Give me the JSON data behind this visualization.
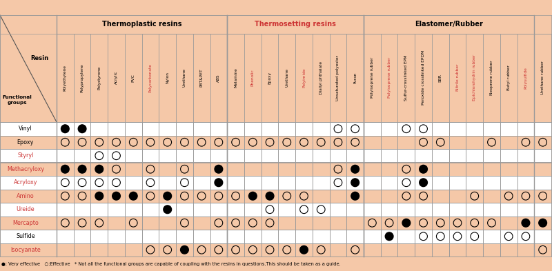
{
  "bg_color": "#F5C8A8",
  "white_color": "#FFFFFF",
  "groups": [
    {
      "text": "Thermoplastic resins",
      "start": 0,
      "end": 9,
      "red": false
    },
    {
      "text": "Thermosetting resins",
      "start": 10,
      "end": 17,
      "red": true
    },
    {
      "text": "Elastomer/Rubber",
      "start": 18,
      "end": 27,
      "red": false
    }
  ],
  "col_headers": [
    "Polyethylene",
    "Polypropylene",
    "Polystyrene",
    "Acrylic",
    "PVC",
    "Polycarbonate",
    "Nylon",
    "Urethane",
    "PBT&PET",
    "ABS",
    "Melamine",
    "Phenolic",
    "Epoxy",
    "Urethane",
    "Polyimide",
    "Diallyl phthalate",
    "Unsaturated polyester",
    "Furan",
    "Polyisoprene rubber",
    "Polyisoprene rubber",
    "Sulfur-crosslinked EPM",
    "Peroxide crosslinked EPDM",
    "SBR",
    "Nitrile rubber",
    "Epichlorohydrin rubber",
    "Neoprene rubber",
    "Butyl rubber",
    "Polysulfide",
    "Urethane rubber"
  ],
  "red_col_indices": [
    5,
    11,
    14,
    19,
    23,
    24,
    27
  ],
  "functional_groups": [
    "Vinyl",
    "Epoxy",
    "Styryl",
    "Methacryloxy",
    "Acryloxy",
    "Amino",
    "Ureide",
    "Mercapto",
    "Sulfide",
    "Isocyanate"
  ],
  "red_fg": [
    "Styryl",
    "Methacryloxy",
    "Acryloxy",
    "Amino",
    "Ureide",
    "Mercapto",
    "Isocyanate"
  ],
  "row_shaded": [
    false,
    true,
    false,
    true,
    false,
    true,
    false,
    true,
    false,
    true
  ],
  "data": {
    "Vinyl": [
      "F",
      "F",
      "",
      "",
      "",
      "",
      "",
      "",
      "",
      "",
      "",
      "",
      "",
      "",
      "",
      "",
      "O",
      "O",
      "",
      "",
      "O",
      "O",
      "",
      "",
      "",
      "",
      "",
      "",
      ""
    ],
    "Epoxy": [
      "O",
      "O",
      "O",
      "O",
      "O",
      "O",
      "O",
      "O",
      "O",
      "O",
      "O",
      "O",
      "O",
      "O",
      "O",
      "O",
      "O",
      "O",
      "",
      "",
      "",
      "O",
      "O",
      "",
      "",
      "O",
      "",
      "O",
      "O"
    ],
    "Styryl": [
      "",
      "",
      "O",
      "O",
      "",
      "",
      "",
      "",
      "",
      "",
      "",
      "",
      "",
      "",
      "",
      "",
      "",
      "",
      "",
      "",
      "",
      "",
      "",
      "",
      "",
      "",
      "",
      "",
      ""
    ],
    "Methacryloxy": [
      "F",
      "F",
      "F",
      "O",
      "",
      "O",
      "",
      "O",
      "",
      "F",
      "",
      "",
      "",
      "",
      "",
      "",
      "O",
      "F",
      "",
      "",
      "O",
      "F",
      "",
      "",
      "",
      "",
      "",
      "",
      ""
    ],
    "Acryloxy": [
      "O",
      "O",
      "O",
      "O",
      "",
      "O",
      "",
      "O",
      "",
      "F",
      "",
      "",
      "",
      "",
      "",
      "",
      "O",
      "F",
      "",
      "",
      "O",
      "F",
      "",
      "",
      "",
      "",
      "",
      "",
      ""
    ],
    "Amino": [
      "O",
      "O",
      "F",
      "F",
      "F",
      "O",
      "F",
      "O",
      "O",
      "O",
      "O",
      "F",
      "F",
      "O",
      "O",
      "",
      "",
      "F",
      "",
      "",
      "O",
      "O",
      "",
      "",
      "O",
      "",
      "O",
      "O",
      "O"
    ],
    "Ureide": [
      "",
      "",
      "",
      "",
      "",
      "",
      "F",
      "",
      "",
      "",
      "",
      "",
      "O",
      "",
      "O",
      "O",
      "",
      "",
      "",
      "",
      "",
      "",
      "",
      "",
      "",
      "",
      "",
      "",
      ""
    ],
    "Mercapto": [
      "O",
      "O",
      "O",
      "",
      "O",
      "",
      "",
      "O",
      "",
      "O",
      "O",
      "O",
      "O",
      "",
      "",
      "",
      "",
      "",
      "O",
      "O",
      "F",
      "O",
      "O",
      "O",
      "O",
      "O",
      "",
      "F",
      "F"
    ],
    "Sulfide": [
      "",
      "",
      "",
      "",
      "",
      "",
      "",
      "",
      "",
      "",
      "",
      "",
      "",
      "",
      "",
      "",
      "",
      "",
      "",
      "F",
      "",
      "O",
      "O",
      "O",
      "O",
      "",
      "O",
      "O",
      ""
    ],
    "Isocyanate": [
      "",
      "",
      "",
      "",
      "",
      "O",
      "O",
      "F",
      "O",
      "O",
      "O",
      "O",
      "O",
      "O",
      "F",
      "O",
      "",
      "O",
      "",
      "",
      "",
      "",
      "",
      "",
      "",
      "",
      "",
      "",
      "O"
    ]
  },
  "footnote": "●: Very effective   ○:Effective   * Not all the functional groups are capable of coupling with the resins in questions.This should be taken as a guide."
}
